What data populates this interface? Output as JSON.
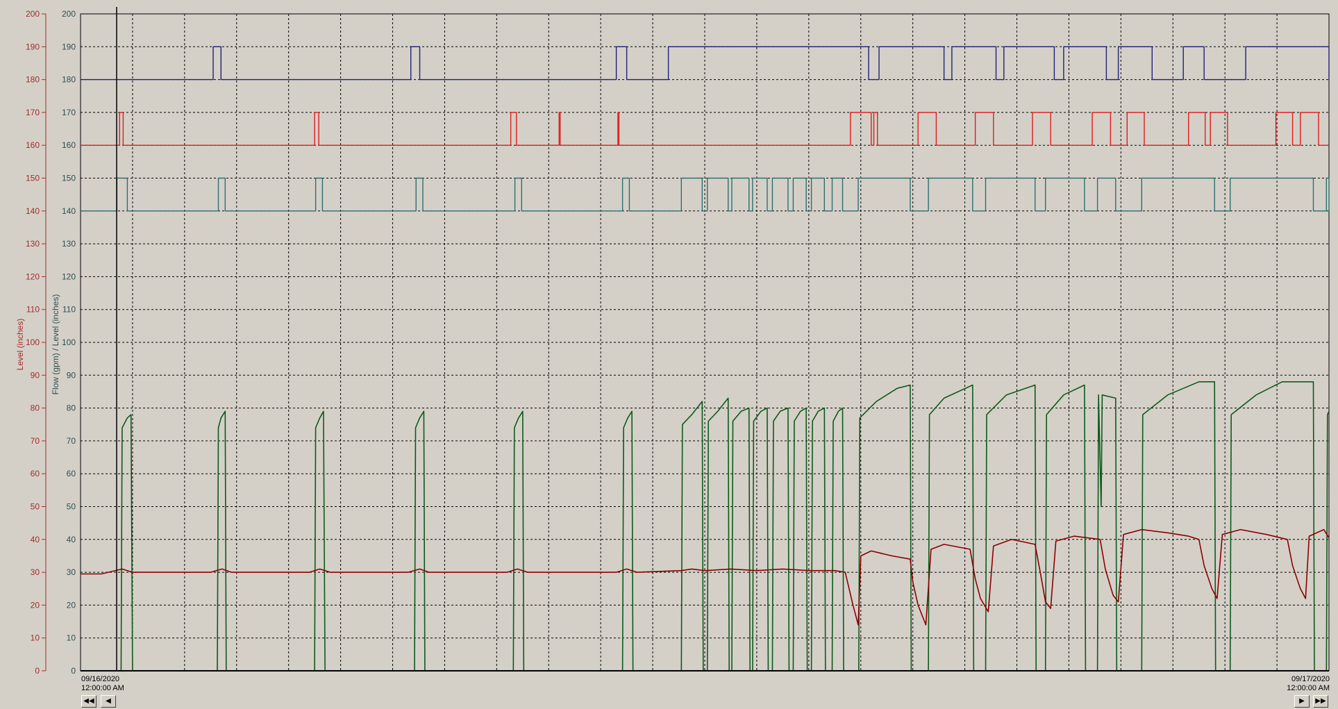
{
  "chart_data": {
    "type": "line",
    "ylabel_left": "Level (inches)",
    "ylabel_right": "Flow (gpm) / Level (inches)",
    "ylim": [
      0,
      200
    ],
    "yticks": [
      "0",
      "10",
      "20",
      "30",
      "40",
      "50",
      "60",
      "70",
      "80",
      "90",
      "100",
      "110",
      "120",
      "130",
      "140",
      "150",
      "160",
      "170",
      "180",
      "190",
      "200"
    ],
    "grid": true,
    "x_start": {
      "date": "09/16/2020",
      "time": "12:00:00 AM"
    },
    "x_end": {
      "date": "09/17/2020",
      "time": "12:00:00 AM"
    },
    "xlim_hours": [
      0,
      24
    ],
    "colors": {
      "level_axis": "#a52a2a",
      "flow_axis": "#2f4f4f",
      "pump3": "#1f1f7a",
      "pump2": "#e01b1b",
      "pump1": "#2f6f6f",
      "flow": "#0c5a1a",
      "level": "#8b0000"
    },
    "series": [
      {
        "key": "pump3",
        "kind": "step",
        "low": 180,
        "high": 190,
        "on": [
          [
            2.55,
            2.7
          ],
          [
            6.35,
            6.52
          ],
          [
            10.3,
            10.5
          ],
          [
            11.3,
            15.15
          ],
          [
            15.35,
            16.6
          ],
          [
            16.75,
            17.6
          ],
          [
            17.75,
            18.72
          ],
          [
            18.9,
            19.72
          ],
          [
            19.95,
            20.6
          ],
          [
            21.2,
            21.6
          ],
          [
            22.4,
            24
          ]
        ]
      },
      {
        "key": "pump2",
        "kind": "step",
        "low": 160,
        "high": 170,
        "on": [
          [
            0.75,
            0.82
          ],
          [
            4.5,
            4.58
          ],
          [
            8.27,
            8.38
          ],
          [
            9.2,
            9.22
          ],
          [
            10.33,
            10.35
          ],
          [
            14.8,
            15.2
          ],
          [
            15.25,
            15.32
          ],
          [
            16.1,
            16.45
          ],
          [
            17.2,
            17.55
          ],
          [
            18.3,
            18.65
          ],
          [
            19.45,
            19.8
          ],
          [
            20.12,
            20.45
          ],
          [
            21.3,
            21.62
          ],
          [
            21.72,
            22.05
          ],
          [
            22.98,
            23.3
          ],
          [
            23.45,
            23.8
          ]
        ]
      },
      {
        "key": "pump1",
        "kind": "step",
        "low": 140,
        "high": 150,
        "on": [
          [
            0.7,
            0.9
          ],
          [
            2.65,
            2.78
          ],
          [
            4.52,
            4.65
          ],
          [
            6.45,
            6.58
          ],
          [
            8.35,
            8.48
          ],
          [
            10.42,
            10.55
          ],
          [
            11.55,
            11.95
          ],
          [
            12.05,
            12.45
          ],
          [
            12.52,
            12.85
          ],
          [
            12.92,
            13.2
          ],
          [
            13.3,
            13.6
          ],
          [
            13.7,
            13.95
          ],
          [
            14.05,
            14.3
          ],
          [
            14.45,
            14.65
          ],
          [
            14.95,
            15.95
          ],
          [
            16.3,
            17.15
          ],
          [
            17.4,
            18.35
          ],
          [
            18.55,
            19.3
          ],
          [
            19.55,
            19.9
          ],
          [
            20.4,
            21.8
          ],
          [
            22.1,
            23.7
          ],
          [
            23.95,
            24
          ]
        ]
      },
      {
        "key": "flow",
        "kind": "line",
        "points": [
          [
            0,
            0
          ],
          [
            0.78,
            0
          ],
          [
            0.8,
            74
          ],
          [
            0.9,
            77
          ],
          [
            0.97,
            78
          ],
          [
            1.0,
            0
          ],
          [
            2.63,
            0
          ],
          [
            2.65,
            74
          ],
          [
            2.7,
            77
          ],
          [
            2.78,
            79
          ],
          [
            2.8,
            0
          ],
          [
            4.5,
            0
          ],
          [
            4.52,
            74
          ],
          [
            4.6,
            77
          ],
          [
            4.67,
            79
          ],
          [
            4.7,
            0
          ],
          [
            6.42,
            0
          ],
          [
            6.44,
            74
          ],
          [
            6.52,
            77
          ],
          [
            6.6,
            79
          ],
          [
            6.62,
            0
          ],
          [
            8.32,
            0
          ],
          [
            8.34,
            74
          ],
          [
            8.42,
            77
          ],
          [
            8.5,
            79
          ],
          [
            8.52,
            0
          ],
          [
            10.42,
            0
          ],
          [
            10.44,
            74
          ],
          [
            10.52,
            77
          ],
          [
            10.6,
            79
          ],
          [
            10.62,
            0
          ],
          [
            11.55,
            0
          ],
          [
            11.57,
            75
          ],
          [
            11.75,
            78
          ],
          [
            11.95,
            82
          ],
          [
            11.97,
            0
          ],
          [
            12.05,
            0
          ],
          [
            12.07,
            76
          ],
          [
            12.25,
            79
          ],
          [
            12.45,
            83
          ],
          [
            12.47,
            0
          ],
          [
            12.52,
            0
          ],
          [
            12.54,
            76
          ],
          [
            12.7,
            79
          ],
          [
            12.85,
            80
          ],
          [
            12.87,
            0
          ],
          [
            12.92,
            0
          ],
          [
            12.94,
            76
          ],
          [
            13.08,
            79
          ],
          [
            13.2,
            80
          ],
          [
            13.22,
            0
          ],
          [
            13.3,
            0
          ],
          [
            13.32,
            76
          ],
          [
            13.45,
            79
          ],
          [
            13.6,
            80
          ],
          [
            13.62,
            0
          ],
          [
            13.7,
            0
          ],
          [
            13.72,
            76
          ],
          [
            13.84,
            79
          ],
          [
            13.95,
            80
          ],
          [
            13.97,
            0
          ],
          [
            14.05,
            0
          ],
          [
            14.07,
            76
          ],
          [
            14.18,
            79
          ],
          [
            14.3,
            80
          ],
          [
            14.32,
            0
          ],
          [
            14.45,
            0
          ],
          [
            14.47,
            76
          ],
          [
            14.57,
            79
          ],
          [
            14.65,
            80
          ],
          [
            14.67,
            0
          ],
          [
            14.96,
            0
          ],
          [
            14.98,
            77
          ],
          [
            15.3,
            82
          ],
          [
            15.7,
            86
          ],
          [
            15.95,
            87
          ],
          [
            15.97,
            0
          ],
          [
            16.3,
            0
          ],
          [
            16.32,
            78
          ],
          [
            16.6,
            83
          ],
          [
            17.15,
            87
          ],
          [
            17.17,
            0
          ],
          [
            17.4,
            0
          ],
          [
            17.42,
            78
          ],
          [
            17.8,
            84
          ],
          [
            18.35,
            87
          ],
          [
            18.37,
            0
          ],
          [
            18.55,
            0
          ],
          [
            18.57,
            78
          ],
          [
            18.9,
            84
          ],
          [
            19.3,
            87
          ],
          [
            19.32,
            0
          ],
          [
            19.55,
            0
          ],
          [
            19.57,
            84
          ],
          [
            19.62,
            50
          ],
          [
            19.64,
            84
          ],
          [
            19.9,
            83
          ],
          [
            19.92,
            0
          ],
          [
            20.4,
            0
          ],
          [
            20.42,
            78
          ],
          [
            20.9,
            84
          ],
          [
            21.5,
            88
          ],
          [
            21.8,
            88
          ],
          [
            21.82,
            0
          ],
          [
            22.1,
            0
          ],
          [
            22.12,
            78
          ],
          [
            22.6,
            84
          ],
          [
            23.1,
            88
          ],
          [
            23.7,
            88
          ],
          [
            23.72,
            0
          ],
          [
            23.95,
            0
          ],
          [
            23.97,
            78
          ],
          [
            24,
            79
          ]
        ]
      },
      {
        "key": "level",
        "kind": "line",
        "points": [
          [
            0,
            29.5
          ],
          [
            0.4,
            29.5
          ],
          [
            0.8,
            31
          ],
          [
            1.0,
            30
          ],
          [
            2.5,
            30
          ],
          [
            2.72,
            31
          ],
          [
            2.9,
            30
          ],
          [
            4.4,
            30
          ],
          [
            4.6,
            31
          ],
          [
            4.8,
            30
          ],
          [
            6.3,
            30
          ],
          [
            6.52,
            31
          ],
          [
            6.7,
            30
          ],
          [
            8.2,
            30
          ],
          [
            8.4,
            31
          ],
          [
            8.6,
            30
          ],
          [
            10.3,
            30
          ],
          [
            10.5,
            31
          ],
          [
            10.7,
            30
          ],
          [
            11.55,
            30.5
          ],
          [
            11.75,
            31
          ],
          [
            12.0,
            30.5
          ],
          [
            12.5,
            31
          ],
          [
            13.0,
            30.5
          ],
          [
            13.5,
            31
          ],
          [
            14.0,
            30.5
          ],
          [
            14.5,
            30.5
          ],
          [
            14.7,
            30
          ],
          [
            14.85,
            20
          ],
          [
            14.95,
            14
          ],
          [
            15.0,
            35
          ],
          [
            15.2,
            36.5
          ],
          [
            15.6,
            35
          ],
          [
            15.95,
            34
          ],
          [
            16.0,
            27
          ],
          [
            16.1,
            20
          ],
          [
            16.25,
            14
          ],
          [
            16.35,
            37
          ],
          [
            16.6,
            38.5
          ],
          [
            17.1,
            37
          ],
          [
            17.2,
            28
          ],
          [
            17.3,
            22
          ],
          [
            17.45,
            18
          ],
          [
            17.55,
            38
          ],
          [
            17.9,
            40
          ],
          [
            18.35,
            38.5
          ],
          [
            18.45,
            30
          ],
          [
            18.55,
            21
          ],
          [
            18.65,
            19
          ],
          [
            18.75,
            39.5
          ],
          [
            19.1,
            41
          ],
          [
            19.6,
            40
          ],
          [
            19.7,
            31
          ],
          [
            19.85,
            23
          ],
          [
            19.95,
            21
          ],
          [
            20.05,
            41.5
          ],
          [
            20.4,
            43
          ],
          [
            20.9,
            42
          ],
          [
            21.3,
            41
          ],
          [
            21.5,
            40
          ],
          [
            21.6,
            32
          ],
          [
            21.75,
            25
          ],
          [
            21.85,
            22
          ],
          [
            21.95,
            41.5
          ],
          [
            22.3,
            43
          ],
          [
            22.8,
            41.5
          ],
          [
            23.2,
            40
          ],
          [
            23.3,
            32
          ],
          [
            23.45,
            25
          ],
          [
            23.55,
            22
          ],
          [
            23.62,
            41
          ],
          [
            23.9,
            43
          ],
          [
            24,
            40.5
          ]
        ]
      }
    ]
  },
  "navigation": {
    "first_label": "◀◀",
    "prev_label": "◀",
    "next_label": "▶",
    "last_label": "▶▶"
  }
}
